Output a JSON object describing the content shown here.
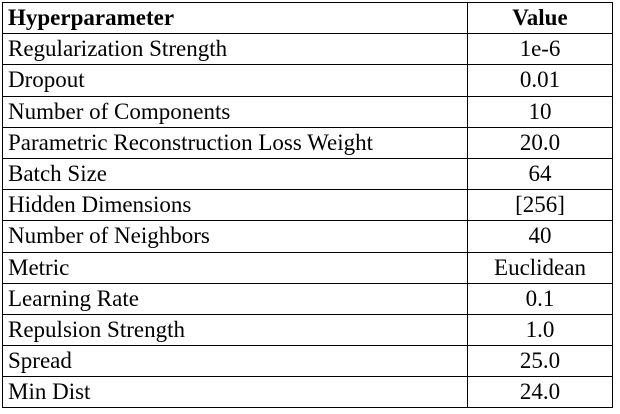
{
  "table": {
    "headers": [
      "Hyperparameter",
      "Value"
    ],
    "rows": [
      [
        "Regularization Strength",
        "1e-6"
      ],
      [
        "Dropout",
        "0.01"
      ],
      [
        "Number of Components",
        "10"
      ],
      [
        "Parametric Reconstruction Loss Weight",
        "20.0"
      ],
      [
        "Batch Size",
        "64"
      ],
      [
        "Hidden Dimensions",
        "[256]"
      ],
      [
        "Number of Neighbors",
        "40"
      ],
      [
        "Metric",
        "Euclidean"
      ],
      [
        "Learning Rate",
        "0.1"
      ],
      [
        "Repulsion Strength",
        "1.0"
      ],
      [
        "Spread",
        "25.0"
      ],
      [
        "Min Dist",
        "24.0"
      ]
    ]
  }
}
